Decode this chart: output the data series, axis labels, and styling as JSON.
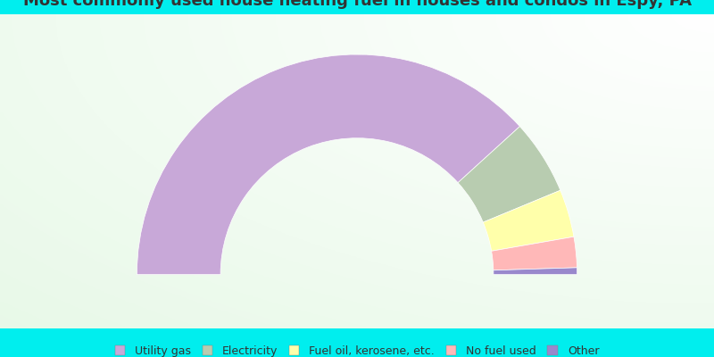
{
  "title": "Most commonly used house heating fuel in houses and condos in Espy, PA",
  "title_color": "#333333",
  "title_fontsize": 13,
  "background_color": "#00EEEE",
  "segments": [
    {
      "label": "Utility gas",
      "value": 76.5,
      "color": "#C8A8D8"
    },
    {
      "label": "Electricity",
      "value": 11.0,
      "color": "#B8CCB0"
    },
    {
      "label": "Fuel oil, kerosene, etc.",
      "value": 7.0,
      "color": "#FFFFAA"
    },
    {
      "label": "No fuel used",
      "value": 4.5,
      "color": "#FFB8B8"
    },
    {
      "label": "Other",
      "value": 1.0,
      "color": "#9988CC"
    }
  ],
  "legend_fontsize": 9,
  "donut_width": 0.38
}
